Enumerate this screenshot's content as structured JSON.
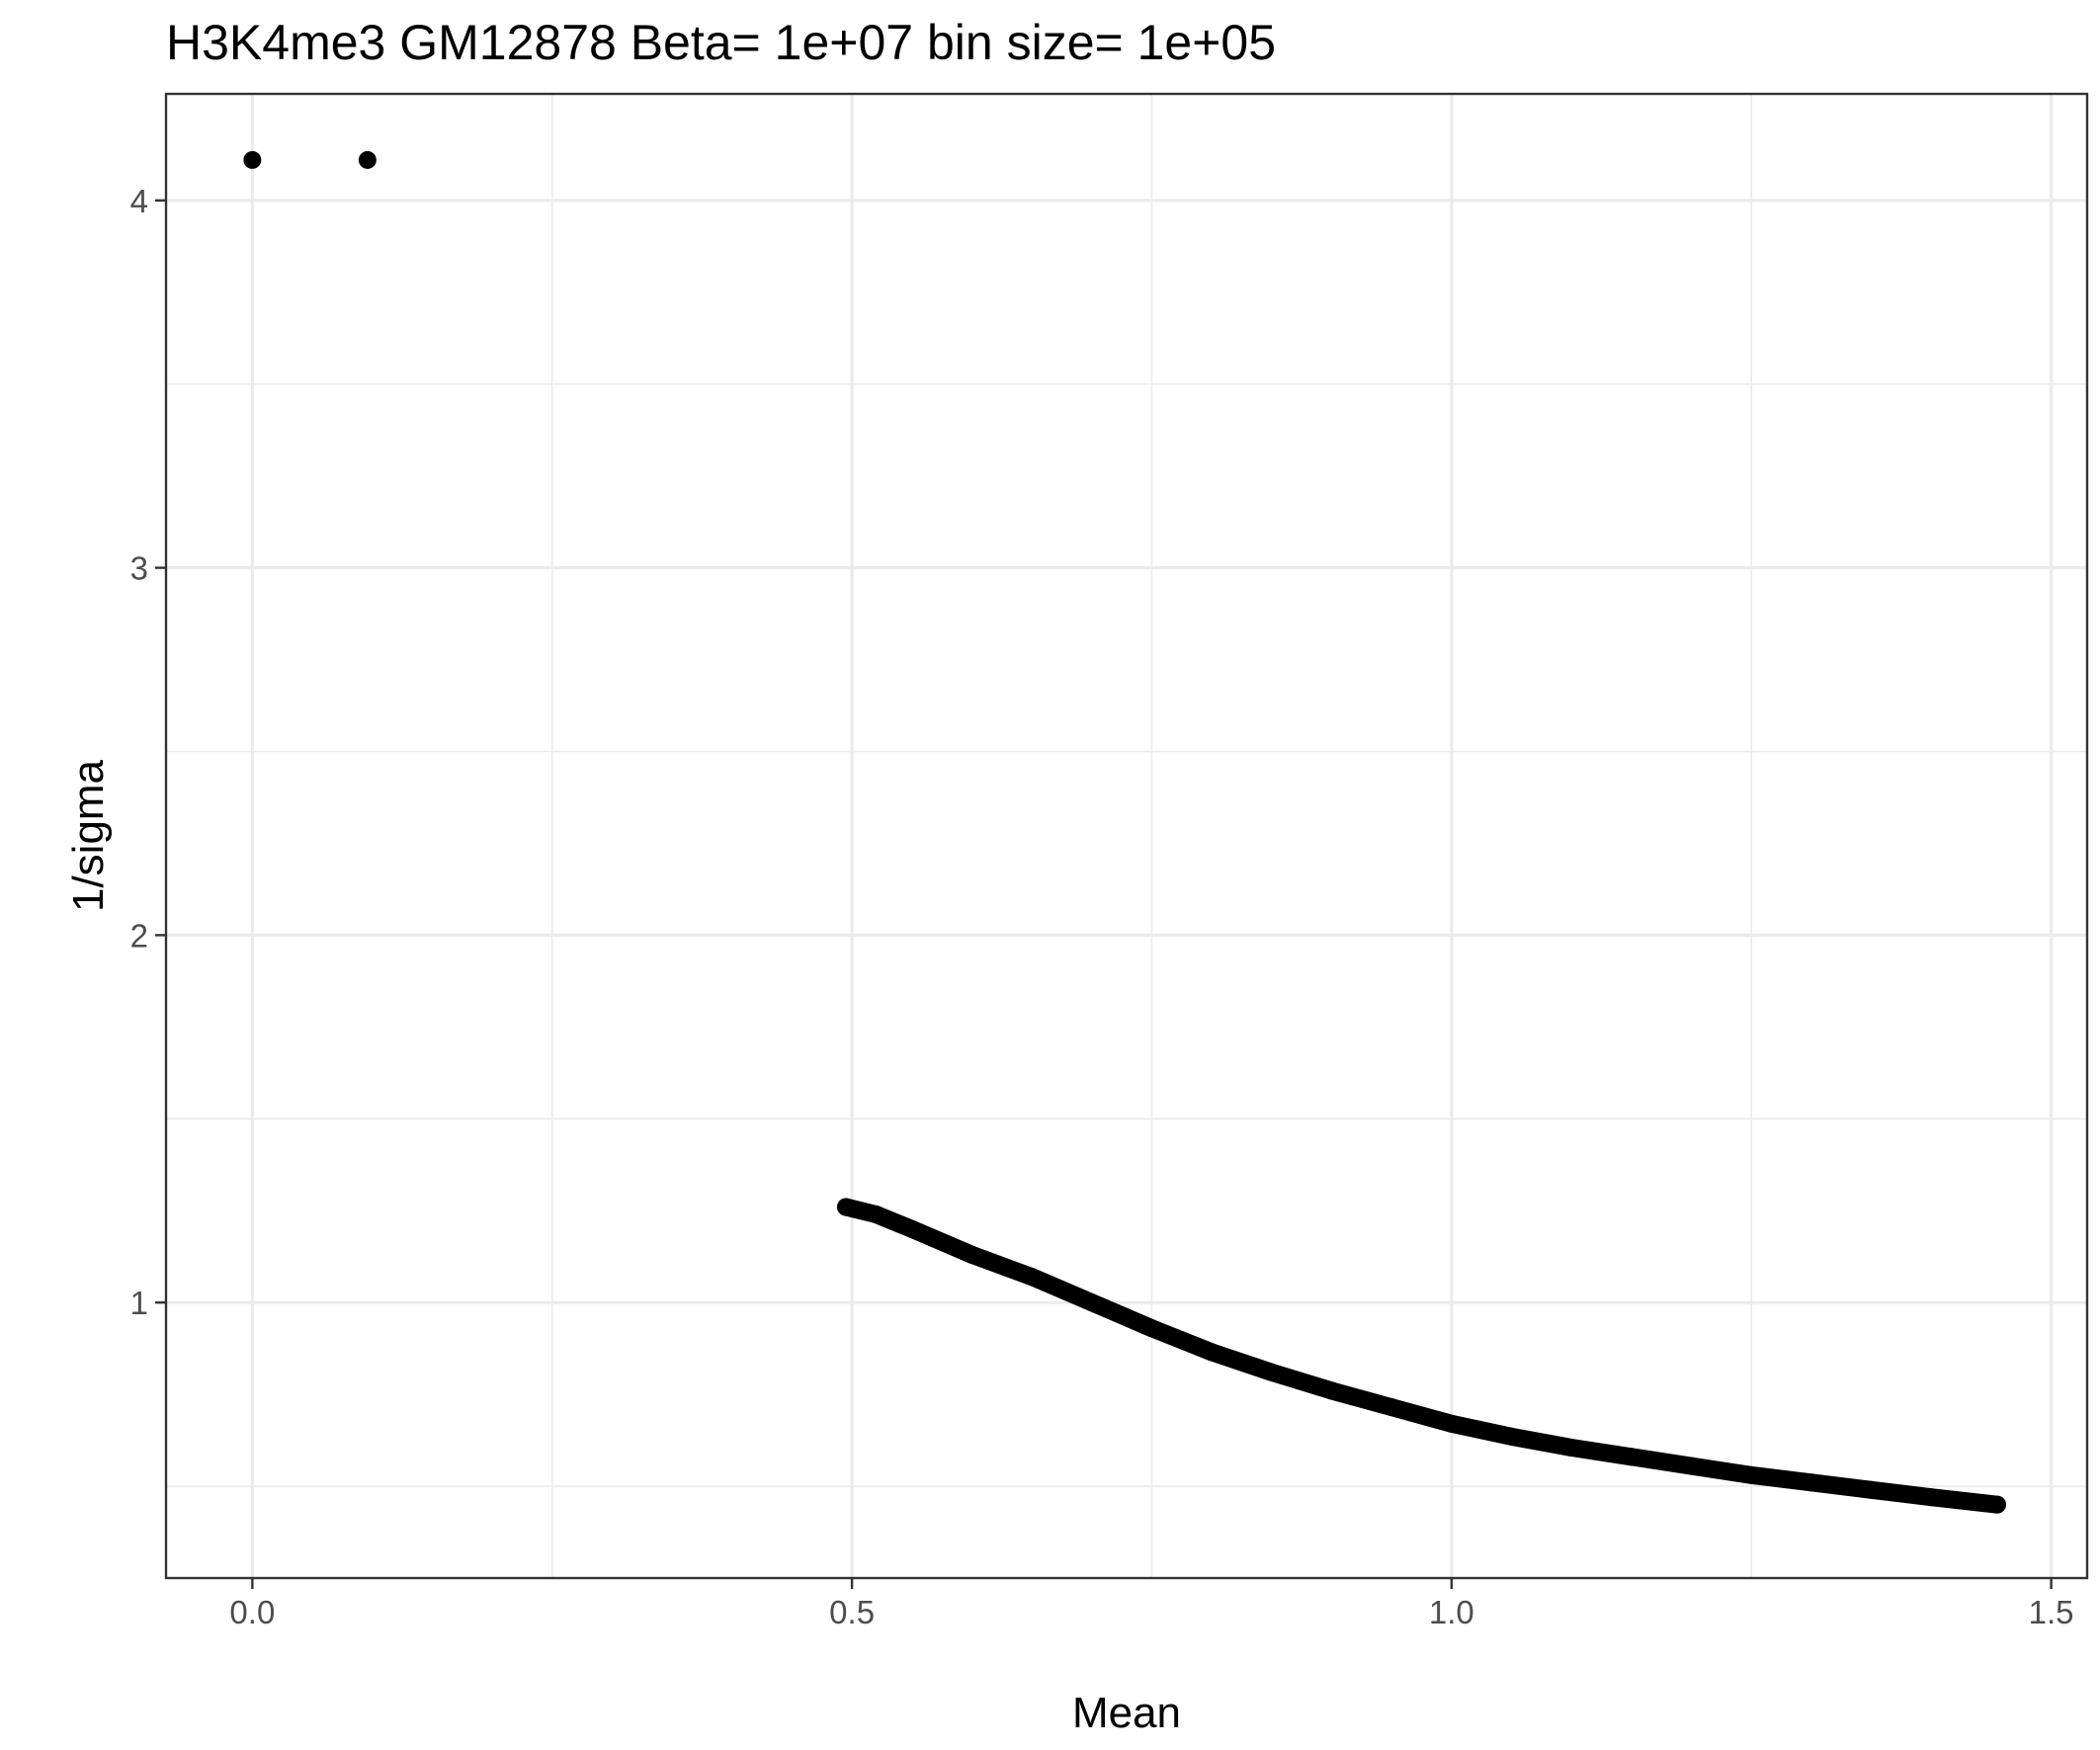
{
  "chart_data": {
    "type": "scatter",
    "title": "H3K4me3 GM12878  Beta=  1e+07  bin size=  1e+05",
    "xlabel": "Mean",
    "ylabel": "1/sigma",
    "xlim": [
      -0.072,
      1.53
    ],
    "ylim": [
      0.25,
      4.29
    ],
    "x_ticks": [
      0.0,
      0.5,
      1.0,
      1.5
    ],
    "x_tick_labels": [
      "0.0",
      "0.5",
      "1.0",
      "1.5"
    ],
    "x_minor_ticks": [
      0.25,
      0.75,
      1.25
    ],
    "y_ticks": [
      1,
      2,
      3,
      4
    ],
    "y_tick_labels": [
      "1",
      "2",
      "3",
      "4"
    ],
    "y_minor_ticks": [
      0.5,
      1.5,
      2.5,
      3.5
    ],
    "grid": true,
    "theme": "bw",
    "mark_color": "#000000",
    "series": [
      {
        "x": [
          0.0,
          0.096
        ],
        "y": [
          4.11,
          4.11
        ]
      },
      {
        "x": [
          0.495,
          0.52,
          0.55,
          0.6,
          0.65,
          0.7,
          0.75,
          0.8,
          0.85,
          0.9,
          0.95,
          1.0,
          1.05,
          1.1,
          1.15,
          1.2,
          1.25,
          1.3,
          1.35,
          1.4,
          1.455
        ],
        "y": [
          1.26,
          1.24,
          1.2,
          1.13,
          1.07,
          1.0,
          0.93,
          0.865,
          0.81,
          0.76,
          0.715,
          0.67,
          0.635,
          0.605,
          0.58,
          0.555,
          0.53,
          0.51,
          0.49,
          0.47,
          0.45
        ]
      }
    ]
  }
}
